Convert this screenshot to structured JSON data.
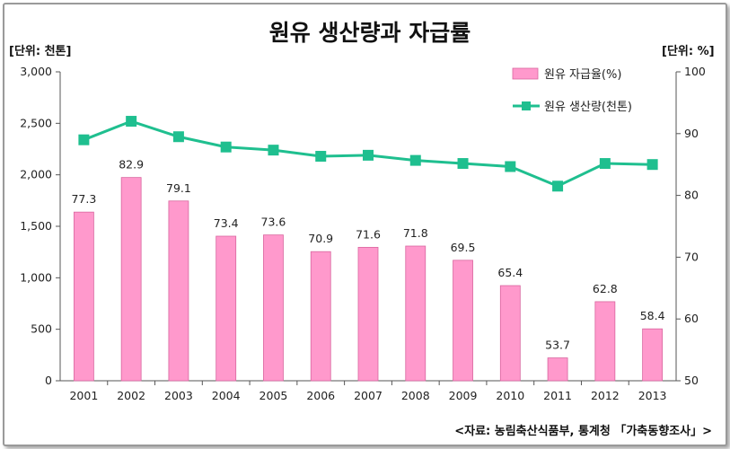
{
  "chart_data": {
    "type": "bar+line",
    "title": "원유 생산량과 자급률",
    "left_unit": "[단위: 천톤]",
    "right_unit": "[단위: %]",
    "categories": [
      "2001",
      "2002",
      "2003",
      "2004",
      "2005",
      "2006",
      "2007",
      "2008",
      "2009",
      "2010",
      "2011",
      "2012",
      "2013"
    ],
    "bar_series": {
      "name": "원유 자급율(%)",
      "axis": "right",
      "color": "#ff99cc",
      "values": [
        77.3,
        82.9,
        79.1,
        73.4,
        73.6,
        70.9,
        71.6,
        71.8,
        69.5,
        65.4,
        53.7,
        62.8,
        58.4
      ]
    },
    "line_series": {
      "name": "원유 생산량(천톤)",
      "axis": "left",
      "color": "#1fbf8f",
      "values": [
        2340,
        2520,
        2370,
        2270,
        2240,
        2180,
        2190,
        2140,
        2110,
        2080,
        1890,
        2110,
        2100
      ]
    },
    "left_axis": {
      "min": 0,
      "max": 3000,
      "ticks": [
        "0",
        "500",
        "1,000",
        "1,500",
        "2,000",
        "2,500",
        "3,000"
      ]
    },
    "right_axis": {
      "min": 50,
      "max": 100,
      "ticks": [
        "50",
        "60",
        "70",
        "80",
        "90",
        "100"
      ]
    },
    "legend_position": "top-right",
    "grid": false,
    "source": "<자료: 농림축산식품부, 통계청 「가축동향조사」>"
  }
}
